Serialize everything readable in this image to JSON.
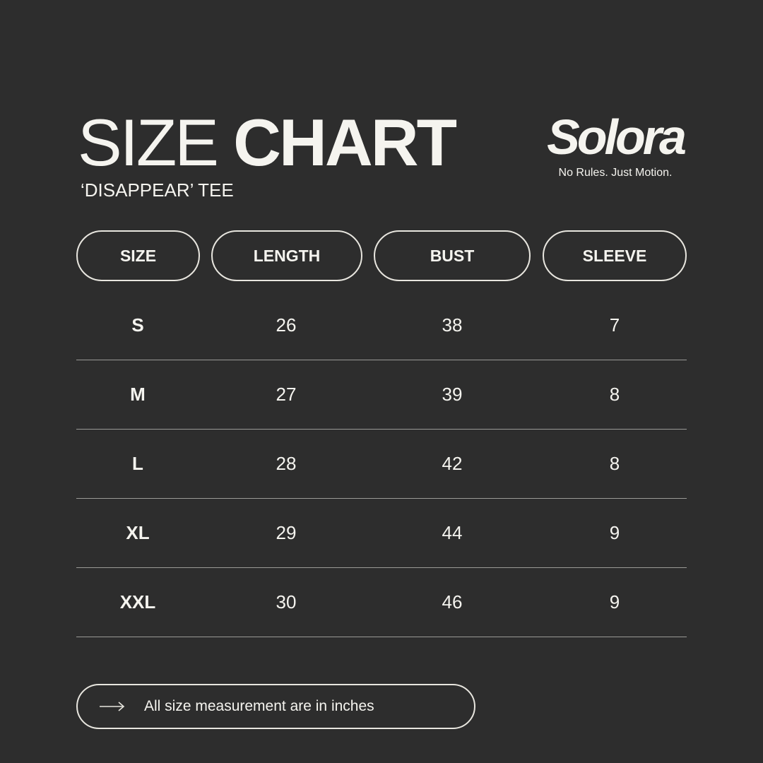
{
  "header": {
    "title_light": "SIZE",
    "title_bold": "CHART",
    "subtitle": "‘DISAPPEAR’ TEE"
  },
  "brand": {
    "logo": "Solora",
    "tagline": "No Rules. Just Motion."
  },
  "table": {
    "columns": [
      "SIZE",
      "LENGTH",
      "BUST",
      "SLEEVE"
    ],
    "rows": [
      [
        "S",
        "26",
        "38",
        "7"
      ],
      [
        "M",
        "27",
        "39",
        "8"
      ],
      [
        "L",
        "28",
        "42",
        "8"
      ],
      [
        "XL",
        "29",
        "44",
        "9"
      ],
      [
        "XXL",
        "30",
        "46",
        "9"
      ]
    ]
  },
  "footer": {
    "icon": "arrow-right-icon",
    "note": "All size measurement are in inches"
  },
  "colors": {
    "background": "#2d2d2d",
    "text": "#f5f4ef"
  }
}
